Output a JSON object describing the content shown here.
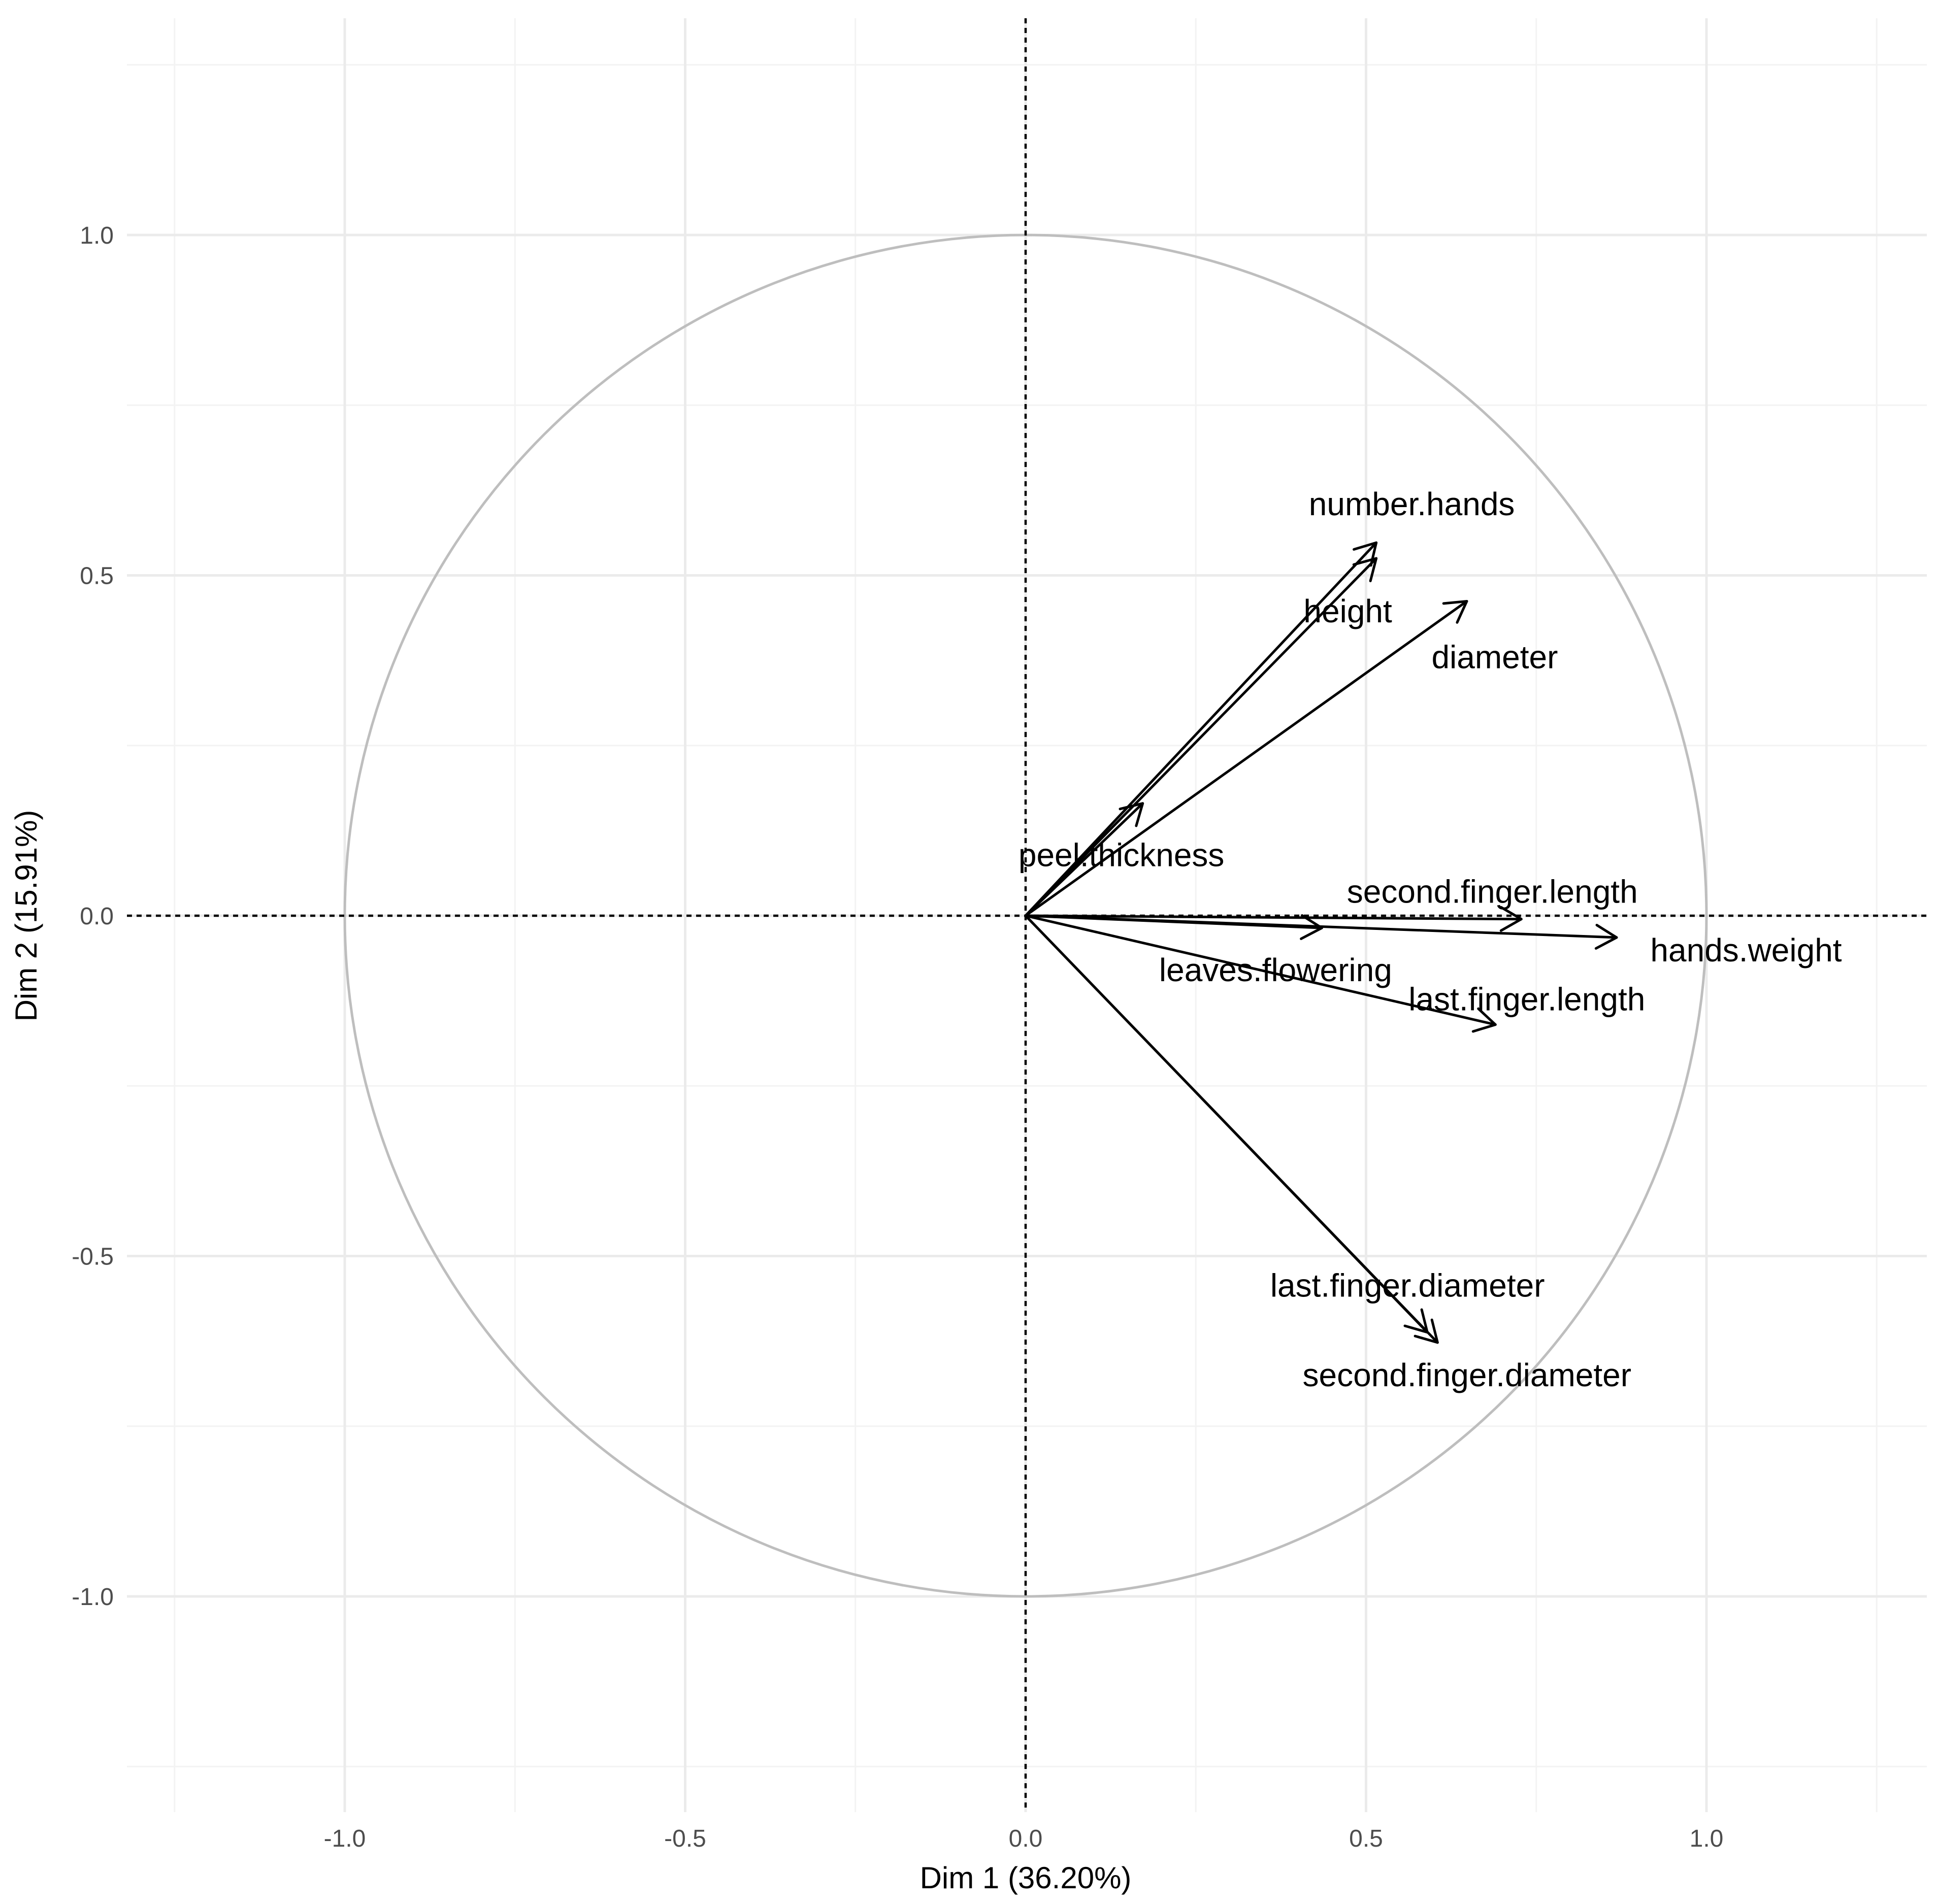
{
  "chart_data": {
    "type": "scatter",
    "subtype": "pca-variable-correlation-circle",
    "title": "",
    "xlabel": "Dim 1 (36.20%)",
    "ylabel": "Dim 2 (15.91%)",
    "xlim": [
      -1.25,
      1.25
    ],
    "ylim": [
      -1.25,
      1.25
    ],
    "x_ticks": [
      -1.0,
      -0.5,
      0.0,
      0.5,
      1.0
    ],
    "x_tick_labels": [
      "-1.0",
      "-0.5",
      "0.0",
      "0.5",
      "1.0"
    ],
    "y_ticks": [
      -1.0,
      -0.5,
      0.0,
      0.5,
      1.0
    ],
    "y_tick_labels": [
      "-1.0",
      "-0.5",
      "0.0",
      "0.5",
      "1.0"
    ],
    "unit_circle": true,
    "reference_lines": {
      "x": 0,
      "y": 0,
      "style": "dashed"
    },
    "grid": true,
    "variables": [
      {
        "name": "number.hands",
        "x": 0.515,
        "y": 0.548
      },
      {
        "name": "height",
        "x": 0.515,
        "y": 0.525
      },
      {
        "name": "diameter",
        "x": 0.648,
        "y": 0.462
      },
      {
        "name": "peel.thickness",
        "x": 0.172,
        "y": 0.165
      },
      {
        "name": "second.finger.length",
        "x": 0.728,
        "y": -0.005
      },
      {
        "name": "hands.weight",
        "x": 0.868,
        "y": -0.032
      },
      {
        "name": "leaves.flowering",
        "x": 0.435,
        "y": -0.018
      },
      {
        "name": "last.finger.length",
        "x": 0.69,
        "y": -0.16
      },
      {
        "name": "last.finger.diameter",
        "x": 0.59,
        "y": -0.612
      },
      {
        "name": "second.finger.diameter",
        "x": 0.605,
        "y": -0.627
      }
    ]
  }
}
